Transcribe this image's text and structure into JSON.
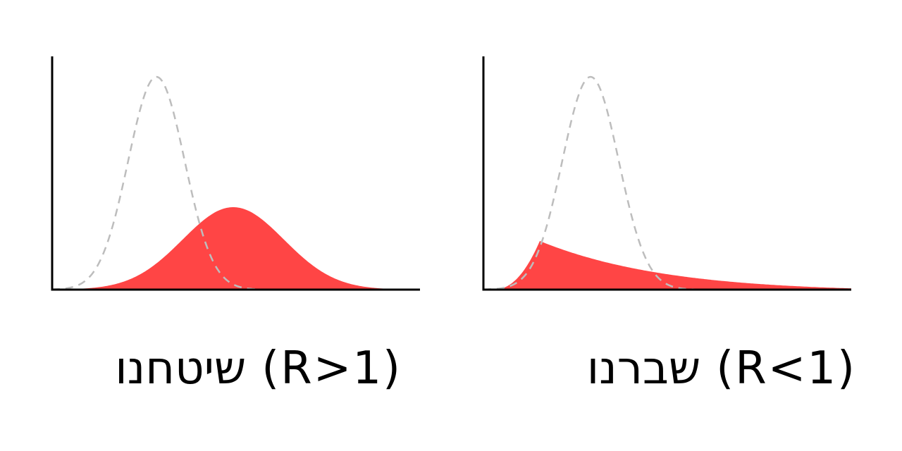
{
  "panels": [
    {
      "word": "שיטחנו",
      "condition": "(R>1)",
      "fill_color": "#ff4545",
      "baseline_color": "#bdbdbd",
      "shape": "bell-shifted-right"
    },
    {
      "word": "שברנו",
      "condition": "(R<1)",
      "fill_color": "#ff4545",
      "baseline_color": "#bdbdbd",
      "shape": "early-peak-long-tail"
    }
  ]
}
